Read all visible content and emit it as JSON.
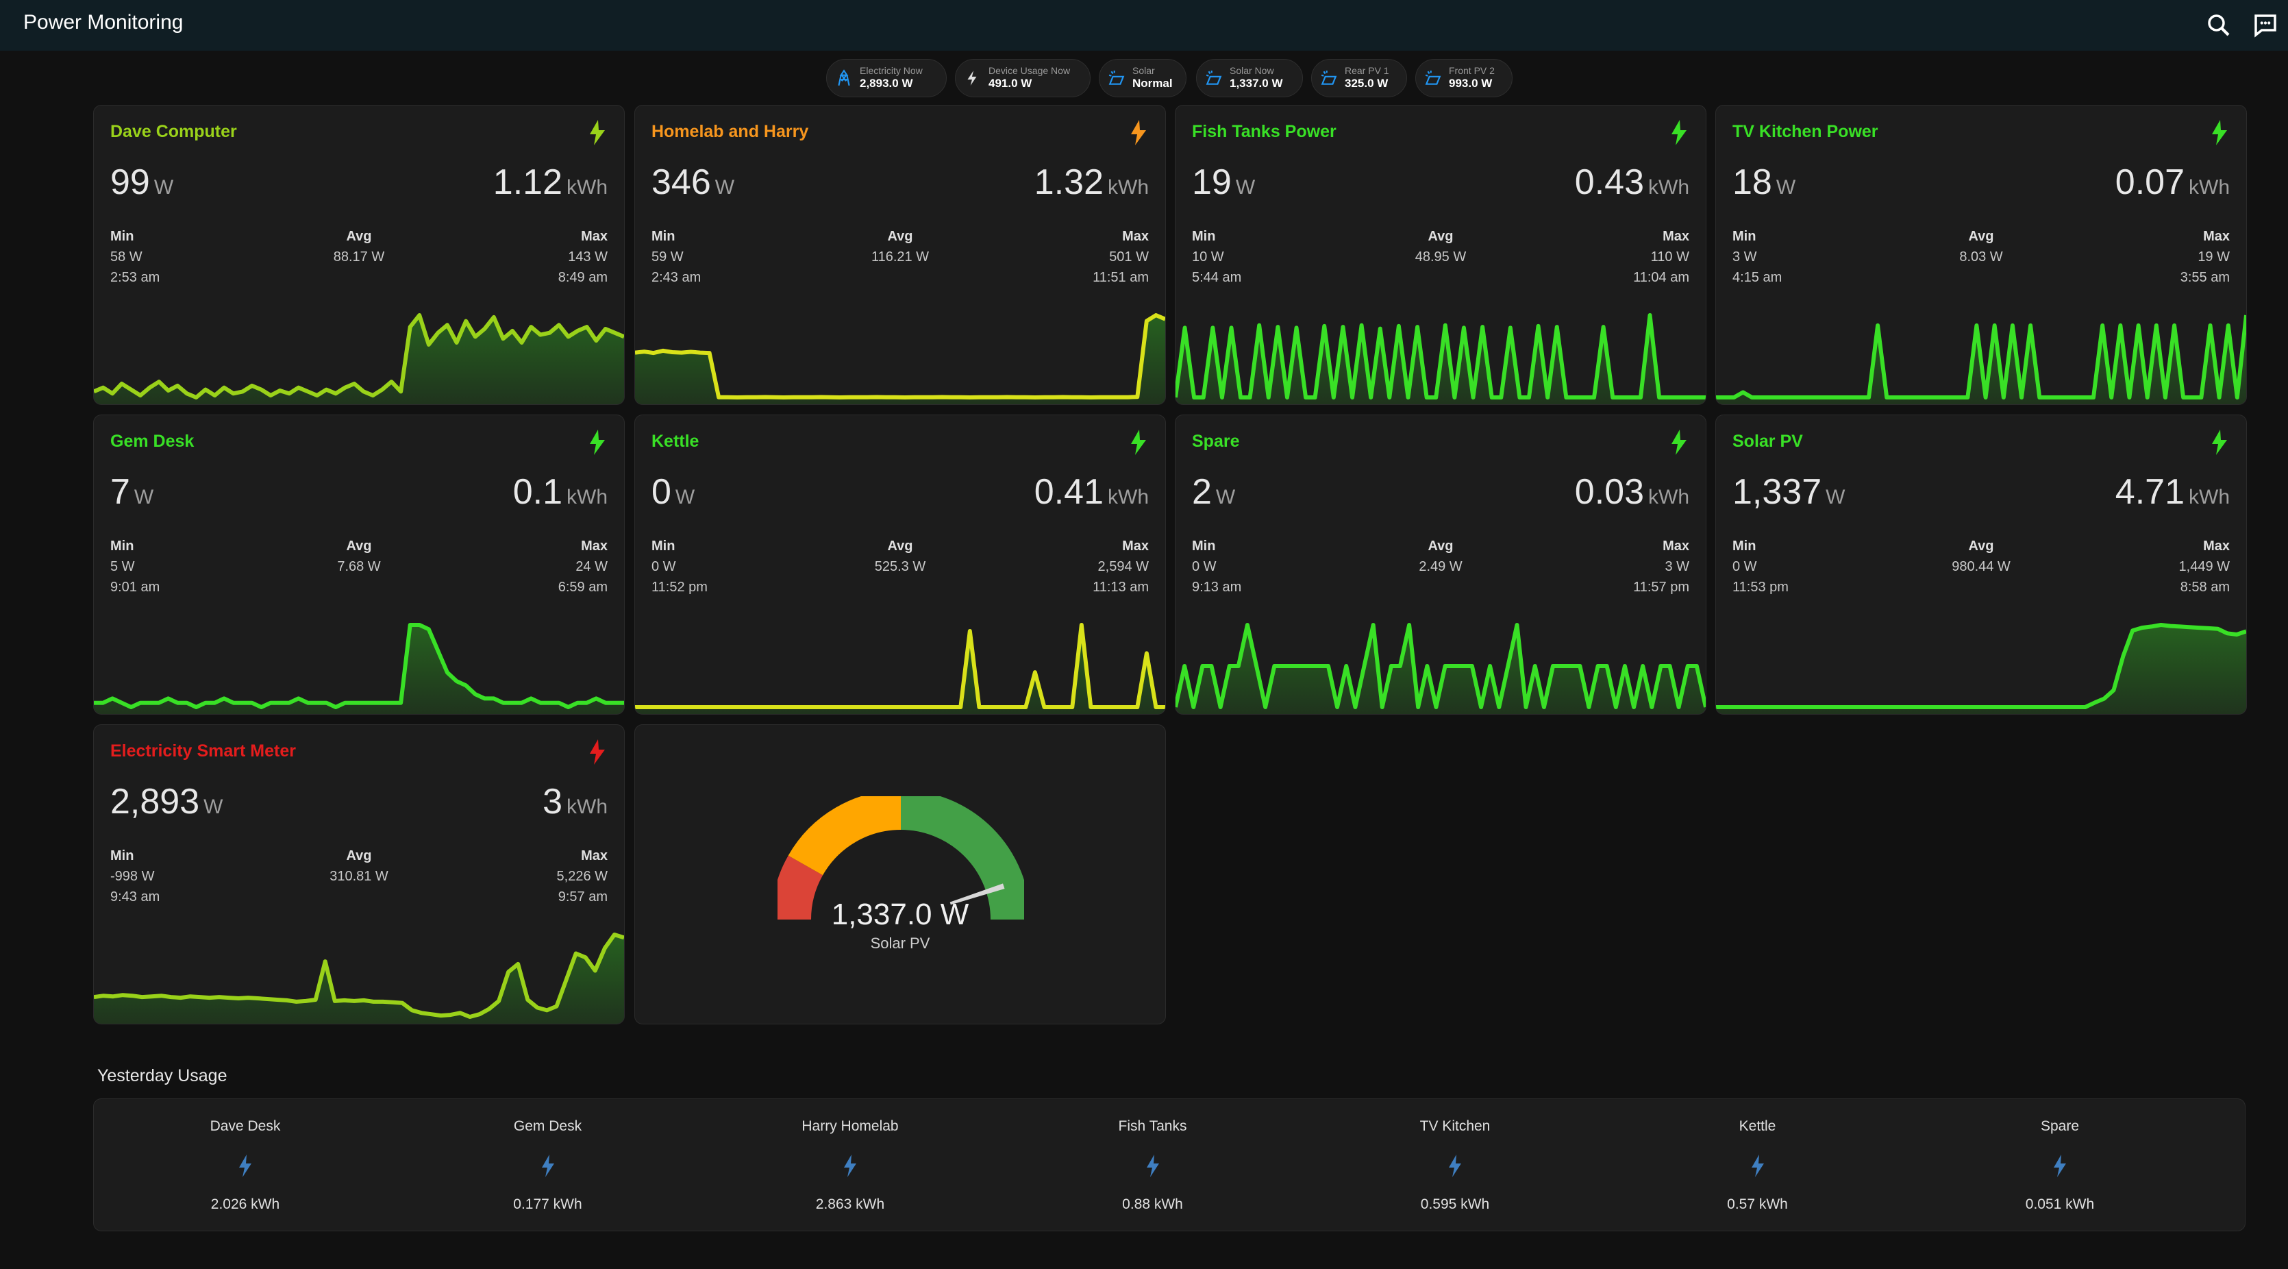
{
  "app": {
    "title": "Power Monitoring"
  },
  "toolbar": {
    "search_icon": "search-icon",
    "assist_icon": "chat-icon"
  },
  "chips": [
    {
      "label": "Electricity Now",
      "value": "2,893.0 W",
      "icon": "transmission-tower-icon",
      "icon_color": "#2196f3"
    },
    {
      "label": "Device Usage Now",
      "value": "491.0 W",
      "icon": "flash-icon",
      "icon_color": "#e0e0e0"
    },
    {
      "label": "Solar",
      "value": "Normal",
      "icon": "solar-panel-icon",
      "icon_color": "#2196f3"
    },
    {
      "label": "Solar Now",
      "value": "1,337.0 W",
      "icon": "solar-panel-icon",
      "icon_color": "#2196f3"
    },
    {
      "label": "Rear PV 1",
      "value": "325.0 W",
      "icon": "solar-panel-icon",
      "icon_color": "#2196f3"
    },
    {
      "label": "Front PV 2",
      "value": "993.0 W",
      "icon": "solar-panel-icon",
      "icon_color": "#2196f3"
    }
  ],
  "cards": [
    {
      "title": "Dave Computer",
      "title_color": "#9ad21a",
      "power": "99",
      "power_unit": "W",
      "energy": "1.12",
      "energy_unit": "kWh",
      "min_label": "Min",
      "min_value": "58 W",
      "min_time": "2:53 am",
      "avg_label": "Avg",
      "avg_value": "88.17 W",
      "max_label": "Max",
      "max_value": "143 W",
      "max_time": "8:49 am",
      "history": [
        62,
        66,
        60,
        70,
        64,
        58,
        66,
        72,
        63,
        68,
        60,
        56,
        64,
        58,
        66,
        60,
        62,
        68,
        64,
        58,
        63,
        60,
        66,
        62,
        58,
        64,
        60,
        66,
        70,
        62,
        58,
        64,
        72,
        62,
        128,
        140,
        110,
        122,
        130,
        112,
        134,
        118,
        126,
        138,
        116,
        124,
        112,
        128,
        120,
        122,
        130,
        118,
        124,
        128,
        114,
        126,
        122,
        118
      ]
    },
    {
      "title": "Homelab and Harry",
      "title_color": "#f7961e",
      "power": "346",
      "power_unit": "W",
      "energy": "1.32",
      "energy_unit": "kWh",
      "min_label": "Min",
      "min_value": "59 W",
      "min_time": "2:43 am",
      "avg_label": "Avg",
      "avg_value": "116.21 W",
      "max_label": "Max",
      "max_value": "501 W",
      "max_time": "11:51 am",
      "history": [
        300,
        305,
        298,
        310,
        302,
        300,
        304,
        300,
        298,
        60,
        60,
        59,
        60,
        60,
        61,
        60,
        59,
        60,
        60,
        60,
        61,
        60,
        59,
        60,
        60,
        60,
        61,
        60,
        60,
        59,
        60,
        60,
        60,
        61,
        60,
        60,
        59,
        60,
        60,
        60,
        61,
        60,
        60,
        59,
        60,
        60,
        61,
        60,
        60,
        59,
        60,
        60,
        60,
        60,
        62,
        470,
        501,
        480
      ]
    },
    {
      "title": "Fish Tanks Power",
      "title_color": "#39e026",
      "power": "19",
      "power_unit": "W",
      "energy": "0.43",
      "energy_unit": "kWh",
      "min_label": "Min",
      "min_value": "10 W",
      "min_time": "5:44 am",
      "avg_label": "Avg",
      "avg_value": "48.95 W",
      "max_label": "Max",
      "max_value": "110 W",
      "max_time": "11:04 am",
      "history": [
        12,
        95,
        12,
        12,
        95,
        12,
        95,
        12,
        12,
        98,
        12,
        96,
        12,
        95,
        12,
        12,
        97,
        12,
        96,
        12,
        98,
        12,
        94,
        12,
        97,
        12,
        96,
        12,
        12,
        98,
        12,
        95,
        12,
        96,
        12,
        12,
        95,
        12,
        12,
        97,
        12,
        96,
        12,
        12,
        12,
        12,
        96,
        12,
        12,
        12,
        12,
        110,
        12,
        12,
        12,
        12,
        12,
        12
      ]
    },
    {
      "title": "TV Kitchen Power",
      "title_color": "#39e026",
      "power": "18",
      "power_unit": "W",
      "energy": "0.07",
      "energy_unit": "kWh",
      "min_label": "Min",
      "min_value": "3 W",
      "min_time": "4:15 am",
      "avg_label": "Avg",
      "avg_value": "8.03 W",
      "max_label": "Max",
      "max_value": "19 W",
      "max_time": "3:55 am",
      "history": [
        3,
        3,
        3,
        4,
        3,
        3,
        3,
        3,
        3,
        3,
        3,
        3,
        3,
        3,
        3,
        3,
        3,
        3,
        17,
        3,
        3,
        3,
        3,
        3,
        3,
        3,
        3,
        3,
        3,
        17,
        3,
        17,
        3,
        17,
        3,
        17,
        3,
        3,
        3,
        3,
        3,
        3,
        3,
        17,
        3,
        17,
        3,
        17,
        3,
        17,
        3,
        17,
        3,
        3,
        3,
        17,
        3,
        17,
        3,
        19
      ]
    },
    {
      "title": "Gem Desk",
      "title_color": "#39e026",
      "power": "7",
      "power_unit": "W",
      "energy": "0.1",
      "energy_unit": "kWh",
      "min_label": "Min",
      "min_value": "5 W",
      "min_time": "9:01 am",
      "avg_label": "Avg",
      "avg_value": "7.68 W",
      "max_label": "Max",
      "max_value": "24 W",
      "max_time": "6:59 am",
      "history": [
        6,
        6,
        7,
        6,
        5,
        6,
        6,
        6,
        7,
        6,
        6,
        5,
        6,
        6,
        7,
        6,
        6,
        6,
        5,
        6,
        6,
        6,
        7,
        6,
        6,
        6,
        5,
        6,
        6,
        6,
        6,
        6,
        6,
        6,
        24,
        24,
        23,
        18,
        13,
        11,
        10,
        8,
        7,
        7,
        6,
        6,
        6,
        7,
        6,
        6,
        6,
        5,
        6,
        6,
        7,
        6,
        6,
        6
      ]
    },
    {
      "title": "Kettle",
      "title_color": "#39e026",
      "power": "0",
      "power_unit": "W",
      "energy": "0.41",
      "energy_unit": "kWh",
      "min_label": "Min",
      "min_value": "0 W",
      "min_time": "11:52 pm",
      "avg_label": "Avg",
      "avg_value": "525.3 W",
      "max_label": "Max",
      "max_value": "2,594 W",
      "max_time": "11:13 am",
      "history": [
        0,
        0,
        0,
        0,
        0,
        0,
        0,
        0,
        0,
        0,
        0,
        0,
        0,
        0,
        0,
        0,
        0,
        0,
        0,
        0,
        0,
        0,
        0,
        0,
        0,
        0,
        0,
        0,
        0,
        0,
        0,
        0,
        0,
        0,
        0,
        0,
        2400,
        0,
        0,
        0,
        0,
        0,
        0,
        1100,
        0,
        0,
        0,
        0,
        2594,
        0,
        0,
        0,
        0,
        0,
        0,
        1700,
        0,
        0
      ]
    },
    {
      "title": "Spare",
      "title_color": "#39e026",
      "power": "2",
      "power_unit": "W",
      "energy": "0.03",
      "energy_unit": "kWh",
      "min_label": "Min",
      "min_value": "0 W",
      "min_time": "9:13 am",
      "avg_label": "Avg",
      "avg_value": "2.49 W",
      "max_label": "Max",
      "max_value": "3 W",
      "max_time": "11:57 pm",
      "history": [
        1,
        2,
        1,
        2,
        2,
        1,
        2,
        2,
        3,
        2,
        1,
        2,
        2,
        2,
        2,
        2,
        2,
        2,
        1,
        2,
        1,
        2,
        3,
        1,
        2,
        2,
        3,
        1,
        2,
        1,
        2,
        2,
        2,
        2,
        1,
        2,
        1,
        2,
        3,
        1,
        2,
        1,
        2,
        2,
        2,
        2,
        1,
        2,
        2,
        1,
        2,
        1,
        2,
        1,
        2,
        2,
        1,
        2,
        2,
        1
      ]
    },
    {
      "title": "Solar PV",
      "title_color": "#39e026",
      "power": "1,337",
      "power_unit": "W",
      "energy": "4.71",
      "energy_unit": "kWh",
      "min_label": "Min",
      "min_value": "0 W",
      "min_time": "11:53 pm",
      "avg_label": "Avg",
      "avg_value": "980.44 W",
      "max_label": "Max",
      "max_value": "1,449 W",
      "max_time": "8:58 am",
      "history": [
        0,
        0,
        0,
        0,
        0,
        0,
        0,
        0,
        0,
        0,
        0,
        0,
        0,
        0,
        0,
        0,
        0,
        0,
        0,
        0,
        0,
        0,
        0,
        0,
        0,
        0,
        0,
        0,
        0,
        0,
        0,
        0,
        0,
        0,
        0,
        0,
        0,
        0,
        0,
        0,
        80,
        150,
        300,
        900,
        1350,
        1400,
        1420,
        1449,
        1430,
        1420,
        1410,
        1400,
        1390,
        1380,
        1300,
        1280,
        1337
      ]
    },
    {
      "title": "Electricity Smart Meter",
      "title_color": "#e41d1d",
      "power": "2,893",
      "power_unit": "W",
      "energy": "3",
      "energy_unit": "kWh",
      "min_label": "Min",
      "min_value": "-998 W",
      "min_time": "9:43 am",
      "avg_label": "Avg",
      "avg_value": "310.81 W",
      "max_label": "Max",
      "max_value": "5,226 W",
      "max_time": "9:57 am",
      "history": [
        500,
        600,
        550,
        650,
        600,
        500,
        550,
        600,
        500,
        450,
        550,
        500,
        450,
        500,
        450,
        400,
        450,
        400,
        350,
        300,
        250,
        150,
        200,
        300,
        3200,
        200,
        250,
        200,
        250,
        150,
        150,
        100,
        50,
        -500,
        -700,
        -800,
        -900,
        -850,
        -700,
        -998,
        -800,
        -400,
        200,
        2400,
        3000,
        300,
        -300,
        -500,
        -200,
        1800,
        3800,
        3500,
        2500,
        4200,
        5226,
        5000
      ]
    }
  ],
  "gauge": {
    "value": "1,337.0 W",
    "label": "Solar PV",
    "fraction": 0.9
  },
  "yesterday": {
    "title": "Yesterday Usage",
    "items": [
      {
        "name": "Dave Desk",
        "value": "2.026 kWh"
      },
      {
        "name": "Gem Desk",
        "value": "0.177 kWh"
      },
      {
        "name": "Harry Homelab",
        "value": "2.863 kWh"
      },
      {
        "name": "Fish Tanks",
        "value": "0.88 kWh"
      },
      {
        "name": "TV Kitchen",
        "value": "0.595 kWh"
      },
      {
        "name": "Kettle",
        "value": "0.57 kWh"
      },
      {
        "name": "Spare",
        "value": "0.051 kWh"
      }
    ]
  },
  "colors": {
    "green": "#39e026",
    "yellow": "#d9e21a",
    "orange": "#f7961e",
    "red": "#e41d1d",
    "blue": "#2196f3"
  }
}
